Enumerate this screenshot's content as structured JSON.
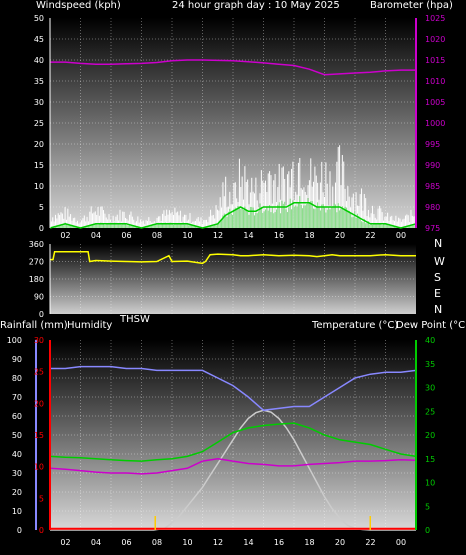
{
  "header": {
    "left": "Windspeed (kph)",
    "center": "24 hour graph day : 10 May 2025",
    "right": "Barometer (hpa)"
  },
  "mid_labels": {
    "thsw": "THSW",
    "rainfall": "Rainfall (mm)",
    "humidity": "Humidity",
    "temperature": "Temperature (°C)",
    "dewpoint": "Dew Point (°C)"
  },
  "compass": [
    "N",
    "W",
    "S",
    "E",
    "N"
  ],
  "colors": {
    "wind_gust": "#ffffff",
    "wind_avg": "#00cc00",
    "barometer": "#cc00cc",
    "direction": "#ffff00",
    "temperature": "#00cc00",
    "humidity": "#8888ff",
    "dewpoint": "#cc00cc",
    "thsw": "#cccccc",
    "rainfall": "#ff0000",
    "solar_marker": "#ffcc00"
  },
  "chart_data": [
    {
      "type": "line",
      "name": "wind_barometer",
      "x_ticks": [
        "02",
        "04",
        "06",
        "08",
        "10",
        "12",
        "14",
        "16",
        "18",
        "20",
        "22",
        "00"
      ],
      "xlim": [
        0,
        24
      ],
      "y_left_ticks": [
        "0",
        "5",
        "10",
        "15",
        "20",
        "25",
        "30",
        "35",
        "40",
        "45",
        "50"
      ],
      "ylim_left": [
        0,
        50
      ],
      "y_right_ticks": [
        "975",
        "980",
        "985",
        "990",
        "995",
        "1000",
        "1005",
        "1010",
        "1015",
        "1020",
        "1025"
      ],
      "ylim_right": [
        975,
        1025
      ],
      "barometer": {
        "x": [
          0,
          1,
          2,
          3,
          4,
          5,
          6,
          7,
          8,
          9,
          10,
          11,
          12,
          13,
          14,
          15,
          16,
          17,
          18,
          19,
          20,
          21,
          22,
          23,
          24
        ],
        "values": [
          1014.5,
          1014.5,
          1014.2,
          1014.0,
          1014.0,
          1014.1,
          1014.2,
          1014.4,
          1014.8,
          1015.0,
          1015.0,
          1014.9,
          1014.8,
          1014.6,
          1014.3,
          1014.0,
          1013.7,
          1012.8,
          1011.5,
          1011.7,
          1011.9,
          1012.1,
          1012.4,
          1012.6,
          1012.6
        ]
      },
      "wind_gust": {
        "x": [
          0,
          1,
          2,
          3,
          4,
          5,
          6,
          7,
          8,
          9,
          10,
          11,
          11.5,
          12,
          12.5,
          13,
          13.5,
          14,
          14.5,
          15,
          15.5,
          16,
          16.5,
          17,
          17.5,
          18,
          18.5,
          19,
          19.5,
          20,
          20.5,
          21,
          22,
          23,
          24
        ],
        "values": [
          3,
          4,
          2,
          5,
          3,
          4,
          2,
          3,
          4,
          3,
          2,
          5,
          11,
          8,
          14,
          12,
          10,
          13,
          15,
          12,
          13,
          16,
          20,
          14,
          13,
          15,
          12,
          16,
          11,
          9,
          8,
          6,
          3,
          2,
          4
        ]
      },
      "wind_avg": {
        "x": [
          0,
          1,
          2,
          3,
          4,
          5,
          6,
          7,
          8,
          9,
          10,
          11,
          11.5,
          12,
          12.5,
          13,
          13.5,
          14,
          14.5,
          15,
          15.5,
          16,
          16.5,
          17,
          17.5,
          18,
          18.5,
          19,
          19.5,
          20,
          20.5,
          21,
          22,
          23,
          24
        ],
        "values": [
          0,
          1,
          0,
          1,
          1,
          1,
          0,
          1,
          1,
          1,
          0,
          1,
          3,
          4,
          5,
          4,
          4,
          5,
          5,
          5,
          5,
          6,
          6,
          6,
          5,
          5,
          5,
          5,
          4,
          3,
          2,
          1,
          1,
          0,
          1
        ]
      }
    },
    {
      "type": "line",
      "name": "wind_direction",
      "y_ticks": [
        "360",
        "270",
        "180",
        "90",
        "0"
      ],
      "ylim": [
        0,
        360
      ],
      "x": [
        0,
        0.2,
        0.3,
        1,
        2,
        2.5,
        2.6,
        3,
        4,
        5,
        6,
        7,
        7.8,
        8,
        9,
        10,
        10.2,
        10.5,
        11,
        12,
        12.5,
        13,
        14,
        15,
        16,
        17,
        17.5,
        18,
        18.5,
        19,
        20,
        21,
        22,
        23,
        24
      ],
      "values": [
        280,
        280,
        320,
        320,
        320,
        320,
        270,
        275,
        272,
        270,
        268,
        270,
        300,
        270,
        272,
        260,
        270,
        305,
        308,
        305,
        300,
        300,
        305,
        300,
        302,
        300,
        295,
        300,
        305,
        300,
        300,
        300,
        305,
        300,
        300
      ]
    },
    {
      "type": "line",
      "name": "temperature_humidity",
      "x_ticks": [
        "02",
        "04",
        "06",
        "08",
        "10",
        "12",
        "14",
        "16",
        "18",
        "20",
        "22",
        "00"
      ],
      "xlim": [
        0,
        24
      ],
      "y_humidity_ticks": [
        "0",
        "10",
        "20",
        "30",
        "40",
        "50",
        "60",
        "70",
        "80",
        "90",
        "100"
      ],
      "ylim_humidity": [
        0,
        100
      ],
      "y_rain_ticks": [
        "0",
        "5",
        "10",
        "15",
        "20",
        "25",
        "30"
      ],
      "ylim_rain": [
        0,
        30
      ],
      "y_temp_ticks": [
        "0",
        "5",
        "10",
        "15",
        "20",
        "25",
        "30",
        "35",
        "40"
      ],
      "ylim_temp": [
        0,
        40
      ],
      "series": [
        {
          "name": "Humidity",
          "x": [
            0,
            1,
            2,
            3,
            4,
            5,
            6,
            7,
            8,
            9,
            10,
            11,
            12,
            13,
            14,
            15,
            16,
            17,
            18,
            19,
            20,
            21,
            22,
            23,
            24
          ],
          "values": [
            85,
            85,
            86,
            86,
            86,
            85,
            85,
            84,
            84,
            84,
            84,
            80,
            76,
            70,
            63,
            64,
            65,
            65,
            70,
            75,
            80,
            82,
            83,
            83,
            84
          ]
        },
        {
          "name": "Temperature",
          "x": [
            0,
            1,
            2,
            3,
            4,
            5,
            6,
            7,
            8,
            9,
            10,
            11,
            12,
            13,
            14,
            15,
            16,
            17,
            18,
            19,
            20,
            21,
            22,
            23,
            24
          ],
          "values": [
            15.5,
            15.3,
            15.2,
            15.0,
            14.8,
            14.6,
            14.5,
            14.8,
            15.0,
            15.5,
            16.5,
            18.5,
            20.5,
            21.5,
            22.0,
            22.3,
            22.5,
            21.5,
            20.0,
            19.0,
            18.5,
            18.0,
            17.0,
            16.0,
            15.5
          ]
        },
        {
          "name": "Dew Point",
          "x": [
            0,
            1,
            2,
            3,
            4,
            5,
            6,
            7,
            8,
            9,
            10,
            11,
            12,
            13,
            14,
            15,
            16,
            17,
            18,
            19,
            20,
            21,
            22,
            23,
            24
          ],
          "values": [
            13.0,
            12.8,
            12.5,
            12.2,
            12.0,
            12.0,
            11.8,
            12.0,
            12.5,
            13.0,
            14.5,
            15.0,
            14.5,
            14.0,
            13.8,
            13.5,
            13.5,
            13.8,
            14.0,
            14.2,
            14.5,
            14.5,
            14.6,
            14.8,
            14.7
          ]
        },
        {
          "name": "THSW",
          "x": [
            0,
            6.8,
            7,
            7.5,
            8,
            8.5,
            9,
            9.5,
            10,
            10.5,
            11,
            11.5,
            12,
            12.5,
            13,
            13.5,
            14,
            14.5,
            15,
            15.5,
            16,
            16.5,
            17,
            17.5,
            18,
            18.5,
            19,
            19.5,
            20,
            20.5,
            21,
            24
          ],
          "values": [
            0,
            0,
            0.1,
            0.3,
            1.5,
            3.0,
            5.0,
            7.0,
            9.0,
            11.5,
            14.0,
            16.5,
            19.0,
            21.5,
            23.5,
            24.7,
            25.2,
            24.8,
            23.5,
            21.5,
            19.0,
            16.0,
            13.0,
            10.0,
            7.0,
            4.5,
            2.5,
            1.0,
            0.3,
            0.1,
            0,
            0
          ]
        },
        {
          "name": "Rainfall",
          "x": [
            0,
            24
          ],
          "values": [
            0.2,
            0.2
          ]
        }
      ],
      "solar_markers_x": [
        6.9,
        21.0
      ]
    }
  ]
}
